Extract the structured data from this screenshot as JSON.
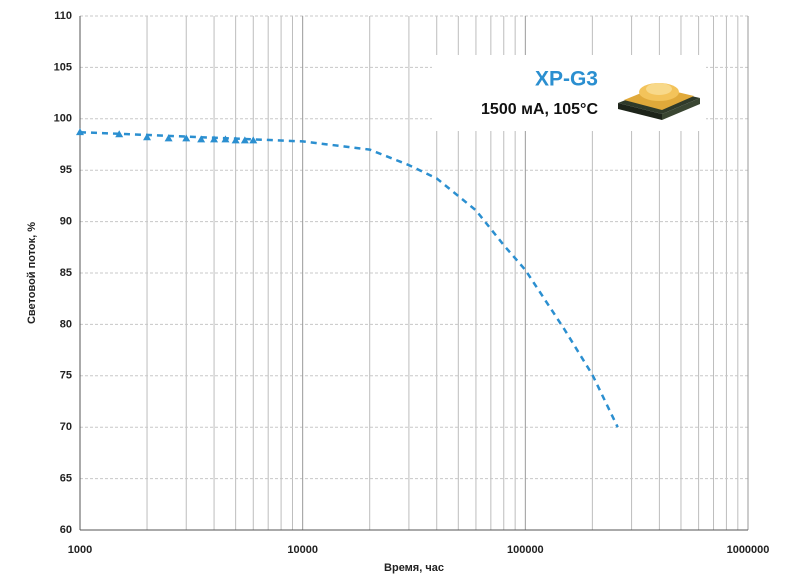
{
  "chart_data": {
    "type": "line",
    "xlabel": "Время, час",
    "ylabel": "Световой поток, %",
    "annotation_title": "XP-G3",
    "annotation_subtitle": "1500 мА, 105°C",
    "xscale": "log",
    "xlim": [
      1000,
      1000000
    ],
    "xticks": [
      1000,
      10000,
      100000,
      1000000
    ],
    "ylim": [
      60,
      110
    ],
    "yticks": [
      60,
      65,
      70,
      75,
      80,
      85,
      90,
      95,
      100,
      105,
      110
    ],
    "grid": true,
    "series": [
      {
        "color": "#2b8fd0",
        "marker": "triangle",
        "line_style": "none",
        "x": [
          1000,
          1500,
          2000,
          2500,
          3000,
          3500,
          4000,
          4500,
          5000,
          5500,
          6000
        ],
        "values": [
          98.7,
          98.5,
          98.2,
          98.1,
          98.1,
          98.0,
          98.0,
          98.0,
          97.9,
          97.9,
          97.9
        ]
      },
      {
        "color": "#2b8fd0",
        "marker": "none",
        "line_style": "dashed",
        "x": [
          1000,
          10000,
          20000,
          30000,
          40000,
          60000,
          80000,
          100000,
          150000,
          200000,
          260000
        ],
        "values": [
          98.7,
          97.8,
          97.0,
          95.5,
          94.2,
          91.1,
          87.7,
          85.3,
          79.5,
          75.1,
          70.0
        ]
      }
    ]
  }
}
